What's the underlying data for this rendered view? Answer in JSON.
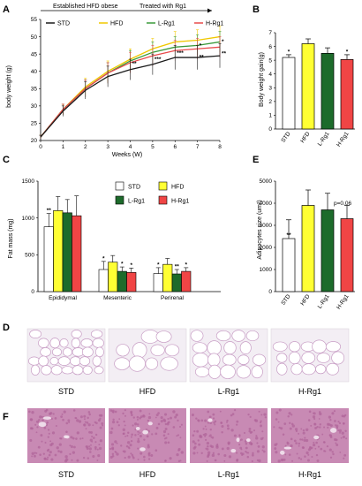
{
  "panels": {
    "A": "A",
    "B": "B",
    "C": "C",
    "D": "D",
    "E": "E",
    "F": "F"
  },
  "colors": {
    "STD": "#1a1a1a",
    "HFD": "#ffff33",
    "L-Rg1": "#1d6b2b",
    "H-Rg1": "#f04545",
    "HFD_line": "#f0c800",
    "LRg1_line": "#3a9a3a",
    "HRg1_line": "#e84a4a",
    "adipose_bg": "#f3eef4",
    "adipose_wall": "#c79cc4",
    "liver_bg": "#c88ab4",
    "liver_cell": "#b0649a"
  },
  "chart_data": [
    {
      "panel": "A",
      "type": "line",
      "phase_labels": [
        "Established HFD obese",
        "Treated with Rg1"
      ],
      "xlabel": "Weeks (W)",
      "ylabel": "body weight (g)",
      "xlim": [
        0,
        8
      ],
      "ylim": [
        20,
        55
      ],
      "x": [
        0,
        1,
        2,
        3,
        4,
        5,
        6,
        7,
        8
      ],
      "x_ticks": [
        0,
        1,
        2,
        3,
        4,
        5,
        6,
        7,
        8
      ],
      "y_ticks": [
        20,
        25,
        30,
        35,
        40,
        45,
        50,
        55
      ],
      "series": [
        {
          "name": "STD",
          "values": [
            21,
            28.5,
            34.5,
            38.5,
            40.5,
            42,
            44,
            44,
            44.5
          ],
          "err": [
            0.5,
            1.5,
            2.5,
            3,
            3,
            3,
            3.5,
            3.5,
            3.5
          ]
        },
        {
          "name": "HFD",
          "values": [
            21,
            29,
            35.5,
            40,
            43.5,
            46.5,
            48.5,
            49,
            50
          ],
          "err": [
            0.5,
            1.5,
            2.5,
            3,
            3,
            3,
            3,
            3,
            3
          ]
        },
        {
          "name": "L-Rg1",
          "values": [
            21,
            29,
            35,
            39.5,
            43,
            45.5,
            47,
            47.5,
            48.5
          ],
          "err": [
            0.5,
            1.5,
            2.5,
            3,
            3,
            3,
            3,
            3,
            3
          ]
        },
        {
          "name": "H-Rg1",
          "values": [
            21,
            29,
            35,
            39.5,
            42.5,
            44.5,
            46,
            46.5,
            47
          ],
          "err": [
            0.5,
            1.5,
            2.5,
            3,
            3,
            3,
            3,
            3,
            3
          ]
        }
      ],
      "annotations": [
        {
          "x": 4,
          "text": "**"
        },
        {
          "x": 5,
          "text": "***"
        },
        {
          "x": 6,
          "text": "***"
        },
        {
          "x": 7,
          "text": "**"
        },
        {
          "x": 8,
          "text": "**"
        },
        {
          "x": 7,
          "text": "*"
        },
        {
          "x": 8,
          "text": "*"
        }
      ]
    },
    {
      "panel": "B",
      "type": "bar",
      "ylabel": "Body weight gain(g)",
      "ylim": [
        0,
        7
      ],
      "y_ticks": [
        0,
        1,
        2,
        3,
        4,
        5,
        6,
        7
      ],
      "categories": [
        "STD",
        "HFD",
        "L-Rg1",
        "H-Rg1"
      ],
      "values": [
        5.2,
        6.2,
        5.5,
        5.05
      ],
      "err": [
        0.2,
        0.35,
        0.4,
        0.35
      ],
      "stars": [
        "*",
        "",
        "",
        "*"
      ]
    },
    {
      "panel": "C",
      "type": "bar",
      "ylabel": "Fat mass (mg)",
      "ylim": [
        0,
        1500
      ],
      "y_ticks": [
        0,
        500,
        1000,
        1500
      ],
      "categories": [
        "Epididymal",
        "Mesenteric",
        "Perirenal"
      ],
      "series": [
        {
          "name": "STD",
          "values": [
            880,
            300,
            245
          ],
          "err": [
            180,
            110,
            80
          ]
        },
        {
          "name": "HFD",
          "values": [
            1100,
            400,
            370
          ],
          "err": [
            190,
            90,
            80
          ]
        },
        {
          "name": "L-Rg1",
          "values": [
            1070,
            275,
            240
          ],
          "err": [
            180,
            60,
            60
          ]
        },
        {
          "name": "H-Rg1",
          "values": [
            1030,
            260,
            275
          ],
          "err": [
            270,
            60,
            50
          ]
        }
      ],
      "stars": [
        [
          "**",
          "",
          "",
          ""
        ],
        [
          "*",
          "",
          "*",
          "*"
        ],
        [
          "*",
          "",
          "**",
          "*"
        ]
      ]
    },
    {
      "panel": "E",
      "type": "bar",
      "ylabel": "Adipocytes size (um²)",
      "ylim": [
        0,
        5000
      ],
      "y_ticks": [
        0,
        1000,
        2000,
        3000,
        4000,
        5000
      ],
      "categories": [
        "STD",
        "HFD",
        "L-Rg1",
        "H-Rg1"
      ],
      "values": [
        2400,
        3900,
        3700,
        3300
      ],
      "err": [
        850,
        700,
        750,
        600
      ],
      "stars": [
        "**",
        "",
        "",
        ""
      ],
      "annotation": "p=0.06"
    }
  ],
  "histology": {
    "adipose_labels": [
      "STD",
      "HFD",
      "L-Rg1",
      "H-Rg1"
    ],
    "liver_labels": [
      "STD",
      "HFD",
      "L-Rg1",
      "H-Rg1"
    ]
  }
}
